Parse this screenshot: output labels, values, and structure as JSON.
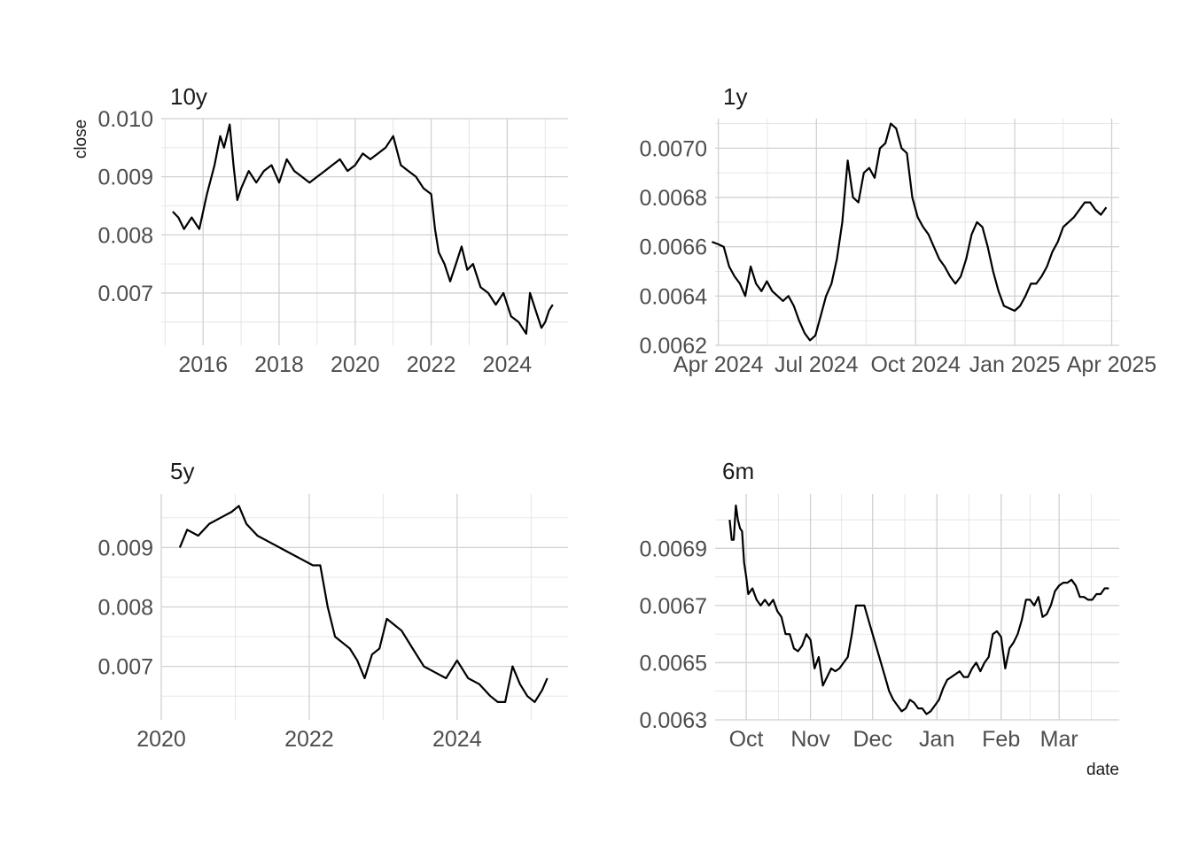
{
  "chart_data": [
    {
      "type": "line",
      "title": "10y",
      "ylabel": "close",
      "xlabel": "",
      "x_ticks": [
        {
          "x": 2016,
          "label": "2016"
        },
        {
          "x": 2018,
          "label": "2018"
        },
        {
          "x": 2020,
          "label": "2020"
        },
        {
          "x": 2022,
          "label": "2022"
        },
        {
          "x": 2024,
          "label": "2024"
        }
      ],
      "y_ticks": [
        {
          "y": 0.007,
          "label": "0.007"
        },
        {
          "y": 0.008,
          "label": "0.008"
        },
        {
          "y": 0.009,
          "label": "0.009"
        },
        {
          "y": 0.01,
          "label": "0.010"
        }
      ],
      "xlim": [
        2014.9,
        2025.6
      ],
      "ylim": [
        0.0061,
        0.01
      ],
      "grid": true,
      "x": [
        2015.2,
        2015.35,
        2015.5,
        2015.7,
        2015.9,
        2016.1,
        2016.3,
        2016.45,
        2016.55,
        2016.7,
        2016.8,
        2016.9,
        2017.0,
        2017.2,
        2017.4,
        2017.6,
        2017.8,
        2018.0,
        2018.2,
        2018.4,
        2018.6,
        2018.8,
        2019.0,
        2019.2,
        2019.4,
        2019.6,
        2019.8,
        2020.0,
        2020.2,
        2020.4,
        2020.6,
        2020.8,
        2021.0,
        2021.2,
        2021.4,
        2021.6,
        2021.8,
        2022.0,
        2022.1,
        2022.2,
        2022.35,
        2022.5,
        2022.65,
        2022.8,
        2022.95,
        2023.1,
        2023.3,
        2023.5,
        2023.7,
        2023.9,
        2024.1,
        2024.3,
        2024.5,
        2024.6,
        2024.75,
        2024.9,
        2025.0,
        2025.1,
        2025.2
      ],
      "values": [
        0.0084,
        0.0083,
        0.0081,
        0.0083,
        0.0081,
        0.0087,
        0.0092,
        0.0097,
        0.0095,
        0.0099,
        0.0092,
        0.0086,
        0.0088,
        0.0091,
        0.0089,
        0.0091,
        0.0092,
        0.0089,
        0.0093,
        0.0091,
        0.009,
        0.0089,
        0.009,
        0.0091,
        0.0092,
        0.0093,
        0.0091,
        0.0092,
        0.0094,
        0.0093,
        0.0094,
        0.0095,
        0.0097,
        0.0092,
        0.0091,
        0.009,
        0.0088,
        0.0087,
        0.0081,
        0.0077,
        0.0075,
        0.0072,
        0.0075,
        0.0078,
        0.0074,
        0.0075,
        0.0071,
        0.007,
        0.0068,
        0.007,
        0.0066,
        0.0065,
        0.0063,
        0.007,
        0.0067,
        0.0064,
        0.0065,
        0.0067,
        0.0068
      ]
    },
    {
      "type": "line",
      "title": "1y",
      "xlabel": "",
      "ylabel": "",
      "x_ticks": [
        {
          "x": 0,
          "label": "Apr 2024"
        },
        {
          "x": 91,
          "label": "Jul 2024"
        },
        {
          "x": 183,
          "label": "Oct 2024"
        },
        {
          "x": 275,
          "label": "Jan 2025"
        },
        {
          "x": 365,
          "label": "Apr 2025"
        }
      ],
      "y_ticks": [
        {
          "y": 0.0062,
          "label": "0.0062"
        },
        {
          "y": 0.0064,
          "label": "0.0064"
        },
        {
          "y": 0.0066,
          "label": "0.0066"
        },
        {
          "y": 0.0068,
          "label": "0.0068"
        },
        {
          "y": 0.007,
          "label": "0.0070"
        }
      ],
      "xlim": [
        -3,
        372
      ],
      "ylim": [
        0.0062,
        0.00712
      ],
      "grid": true,
      "x": [
        -6,
        0,
        5,
        10,
        15,
        20,
        25,
        30,
        35,
        40,
        45,
        50,
        55,
        60,
        65,
        70,
        75,
        80,
        85,
        90,
        95,
        100,
        105,
        110,
        115,
        120,
        125,
        130,
        135,
        140,
        145,
        150,
        155,
        160,
        165,
        170,
        175,
        180,
        185,
        190,
        195,
        200,
        205,
        210,
        215,
        220,
        225,
        230,
        235,
        240,
        245,
        250,
        255,
        260,
        265,
        270,
        275,
        280,
        285,
        290,
        295,
        300,
        305,
        310,
        315,
        320,
        325,
        330,
        335,
        340,
        345,
        350,
        355,
        360
      ],
      "values": [
        0.00662,
        0.00661,
        0.0066,
        0.00652,
        0.00648,
        0.00645,
        0.0064,
        0.00652,
        0.00645,
        0.00642,
        0.00646,
        0.00642,
        0.0064,
        0.00638,
        0.0064,
        0.00636,
        0.0063,
        0.00625,
        0.00622,
        0.00624,
        0.00632,
        0.0064,
        0.00645,
        0.00655,
        0.0067,
        0.00695,
        0.0068,
        0.00678,
        0.0069,
        0.00692,
        0.00688,
        0.007,
        0.00702,
        0.0071,
        0.00708,
        0.007,
        0.00698,
        0.0068,
        0.00672,
        0.00668,
        0.00665,
        0.0066,
        0.00655,
        0.00652,
        0.00648,
        0.00645,
        0.00648,
        0.00655,
        0.00665,
        0.0067,
        0.00668,
        0.0066,
        0.0065,
        0.00642,
        0.00636,
        0.00635,
        0.00634,
        0.00636,
        0.0064,
        0.00645,
        0.00645,
        0.00648,
        0.00652,
        0.00658,
        0.00662,
        0.00668,
        0.0067,
        0.00672,
        0.00675,
        0.00678,
        0.00678,
        0.00675,
        0.00673,
        0.00676
      ]
    },
    {
      "type": "line",
      "title": "5y",
      "xlabel": "",
      "ylabel": "",
      "x_ticks": [
        {
          "x": 2020,
          "label": "2020"
        },
        {
          "x": 2022,
          "label": "2022"
        },
        {
          "x": 2024,
          "label": "2024"
        }
      ],
      "y_ticks": [
        {
          "y": 0.007,
          "label": "0.007"
        },
        {
          "y": 0.008,
          "label": "0.008"
        },
        {
          "y": 0.009,
          "label": "0.009"
        }
      ],
      "xlim": [
        2020.0,
        2025.5
      ],
      "ylim": [
        0.0061,
        0.0099
      ],
      "grid": true,
      "x": [
        2020.25,
        2020.35,
        2020.5,
        2020.65,
        2020.8,
        2020.95,
        2021.05,
        2021.15,
        2021.3,
        2021.45,
        2021.6,
        2021.75,
        2021.9,
        2022.05,
        2022.15,
        2022.25,
        2022.35,
        2022.45,
        2022.55,
        2022.65,
        2022.75,
        2022.85,
        2022.95,
        2023.05,
        2023.15,
        2023.25,
        2023.4,
        2023.55,
        2023.7,
        2023.85,
        2024.0,
        2024.15,
        2024.3,
        2024.45,
        2024.55,
        2024.65,
        2024.75,
        2024.85,
        2024.95,
        2025.05,
        2025.15,
        2025.22
      ],
      "values": [
        0.009,
        0.0093,
        0.0092,
        0.0094,
        0.0095,
        0.0096,
        0.0097,
        0.0094,
        0.0092,
        0.0091,
        0.009,
        0.0089,
        0.0088,
        0.0087,
        0.0087,
        0.008,
        0.0075,
        0.0074,
        0.0073,
        0.0071,
        0.0068,
        0.0072,
        0.0073,
        0.0078,
        0.0077,
        0.0076,
        0.0073,
        0.007,
        0.0069,
        0.0068,
        0.0071,
        0.0068,
        0.0067,
        0.0065,
        0.0064,
        0.0064,
        0.007,
        0.0067,
        0.0065,
        0.0064,
        0.0066,
        0.0068
      ]
    },
    {
      "type": "line",
      "title": "6m",
      "xlabel": "date",
      "ylabel": "",
      "x_ticks": [
        {
          "x": 0,
          "label": "Oct"
        },
        {
          "x": 31,
          "label": "Nov"
        },
        {
          "x": 61,
          "label": "Dec"
        },
        {
          "x": 92,
          "label": "Jan"
        },
        {
          "x": 123,
          "label": "Feb"
        },
        {
          "x": 151,
          "label": "Mar"
        }
      ],
      "y_ticks": [
        {
          "y": 0.0063,
          "label": "0.0063"
        },
        {
          "y": 0.0065,
          "label": "0.0065"
        },
        {
          "y": 0.0067,
          "label": "0.0067"
        },
        {
          "y": 0.0069,
          "label": "0.0069"
        }
      ],
      "xlim": [
        -15,
        180
      ],
      "ylim": [
        0.0063,
        0.00709
      ],
      "grid": true,
      "x": [
        -8,
        -7,
        -6,
        -5,
        -4,
        -3,
        -2,
        -1,
        0,
        1,
        2,
        3,
        5,
        7,
        9,
        11,
        13,
        15,
        17,
        19,
        21,
        23,
        25,
        27,
        29,
        31,
        33,
        35,
        37,
        39,
        41,
        43,
        45,
        47,
        49,
        51,
        53,
        55,
        57,
        59,
        61,
        63,
        65,
        67,
        69,
        71,
        73,
        75,
        77,
        79,
        81,
        83,
        85,
        87,
        89,
        91,
        93,
        95,
        97,
        99,
        101,
        103,
        105,
        107,
        109,
        111,
        113,
        115,
        117,
        119,
        121,
        123,
        125,
        127,
        129,
        131,
        133,
        135,
        137,
        139,
        141,
        143,
        145,
        147,
        149,
        151,
        153,
        155,
        157,
        159,
        161,
        163,
        165,
        167,
        169,
        171,
        173,
        175
      ],
      "values": [
        0.007,
        0.00693,
        0.00693,
        0.00705,
        0.007,
        0.00697,
        0.00696,
        0.00685,
        0.0068,
        0.00674,
        0.00675,
        0.00676,
        0.00672,
        0.0067,
        0.00672,
        0.0067,
        0.00672,
        0.00668,
        0.00666,
        0.0066,
        0.0066,
        0.00655,
        0.00654,
        0.00656,
        0.0066,
        0.00658,
        0.00648,
        0.00652,
        0.00642,
        0.00645,
        0.00648,
        0.00647,
        0.00648,
        0.0065,
        0.00652,
        0.0066,
        0.0067,
        0.0067,
        0.0067,
        0.00665,
        0.0066,
        0.00655,
        0.0065,
        0.00645,
        0.0064,
        0.00637,
        0.00635,
        0.00633,
        0.00634,
        0.00637,
        0.00636,
        0.00634,
        0.00634,
        0.00632,
        0.00633,
        0.00635,
        0.00637,
        0.00641,
        0.00644,
        0.00645,
        0.00646,
        0.00647,
        0.00645,
        0.00645,
        0.00648,
        0.0065,
        0.00647,
        0.0065,
        0.00652,
        0.0066,
        0.00661,
        0.00659,
        0.00648,
        0.00655,
        0.00657,
        0.0066,
        0.00665,
        0.00672,
        0.00672,
        0.0067,
        0.00673,
        0.00666,
        0.00667,
        0.0067,
        0.00675,
        0.00677,
        0.00678,
        0.00678,
        0.00679,
        0.00677,
        0.00673,
        0.00673,
        0.00672,
        0.00672,
        0.00674,
        0.00674,
        0.00676,
        0.00676
      ]
    }
  ]
}
